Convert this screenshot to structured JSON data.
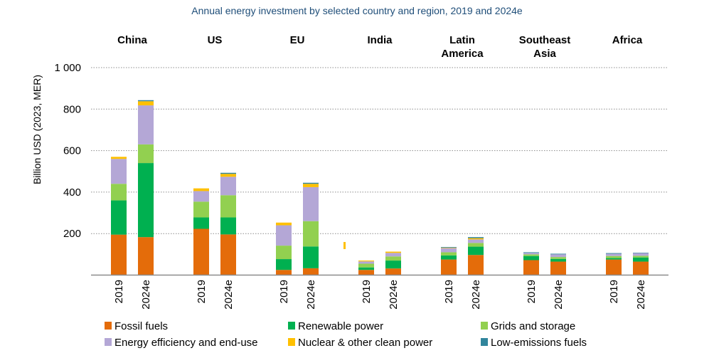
{
  "chart_data": {
    "type": "bar",
    "stacked": true,
    "title": "Annual energy investment by selected country and region, 2019 and 2024e",
    "ylabel": "Billion USD (2023, MER)",
    "xlabel": "",
    "ylim": [
      0,
      1000
    ],
    "yticks": [
      200,
      400,
      600,
      800,
      1000
    ],
    "ytick_labels": [
      "200",
      "400",
      "600",
      "800",
      "1 000"
    ],
    "grid": true,
    "legend_position": "bottom",
    "groups": [
      "China",
      "US",
      "EU",
      "India",
      "Latin America",
      "Southeast Asia",
      "Africa"
    ],
    "group_label_lines": [
      [
        "China"
      ],
      [
        "US"
      ],
      [
        "EU"
      ],
      [
        "India"
      ],
      [
        "Latin",
        "America"
      ],
      [
        "Southeast",
        "Asia"
      ],
      [
        "Africa"
      ]
    ],
    "categories": [
      "2019",
      "2024e"
    ],
    "series": [
      {
        "name": "Fossil fuels",
        "color": "#e46c0a",
        "values": [
          [
            195,
            183
          ],
          [
            223,
            196
          ],
          [
            25,
            33
          ],
          [
            25,
            32
          ],
          [
            75,
            97
          ],
          [
            72,
            65
          ],
          [
            75,
            65
          ]
        ]
      },
      {
        "name": "Renewable power",
        "color": "#00b050",
        "values": [
          [
            165,
            357
          ],
          [
            55,
            82
          ],
          [
            52,
            105
          ],
          [
            12,
            38
          ],
          [
            20,
            40
          ],
          [
            20,
            13
          ],
          [
            7,
            20
          ]
        ]
      },
      {
        "name": "Grids and storage",
        "color": "#92d050",
        "values": [
          [
            80,
            90
          ],
          [
            76,
            107
          ],
          [
            65,
            122
          ],
          [
            18,
            20
          ],
          [
            15,
            18
          ],
          [
            8,
            9
          ],
          [
            10,
            8
          ]
        ]
      },
      {
        "name": "Energy efficiency and end-use",
        "color": "#b4a7d6",
        "values": [
          [
            120,
            188
          ],
          [
            51,
            89
          ],
          [
            98,
            164
          ],
          [
            11,
            17
          ],
          [
            20,
            17
          ],
          [
            7,
            13
          ],
          [
            11,
            13
          ]
        ]
      },
      {
        "name": "Nuclear & other clean power",
        "color": "#ffc000",
        "values": [
          [
            10,
            20
          ],
          [
            13,
            14
          ],
          [
            13,
            16
          ],
          [
            4,
            6
          ],
          [
            2,
            6
          ],
          [
            0,
            0
          ],
          [
            0,
            0
          ]
        ]
      },
      {
        "name": "Low-emissions fuels",
        "color": "#31859c",
        "values": [
          [
            0,
            5
          ],
          [
            0,
            5
          ],
          [
            0,
            5
          ],
          [
            0,
            0
          ],
          [
            3,
            5
          ],
          [
            3,
            3
          ],
          [
            3,
            2
          ]
        ]
      }
    ],
    "legend_rows": [
      [
        "Fossil fuels",
        "Renewable power",
        "Grids and storage"
      ],
      [
        "Energy efficiency and end-use",
        "Nuclear & other clean power",
        "Low-emissions fuels"
      ]
    ],
    "colors": {
      "title": "#1f4e79",
      "grid": "#8c8c8c",
      "axis": "#8c8c8c"
    }
  }
}
